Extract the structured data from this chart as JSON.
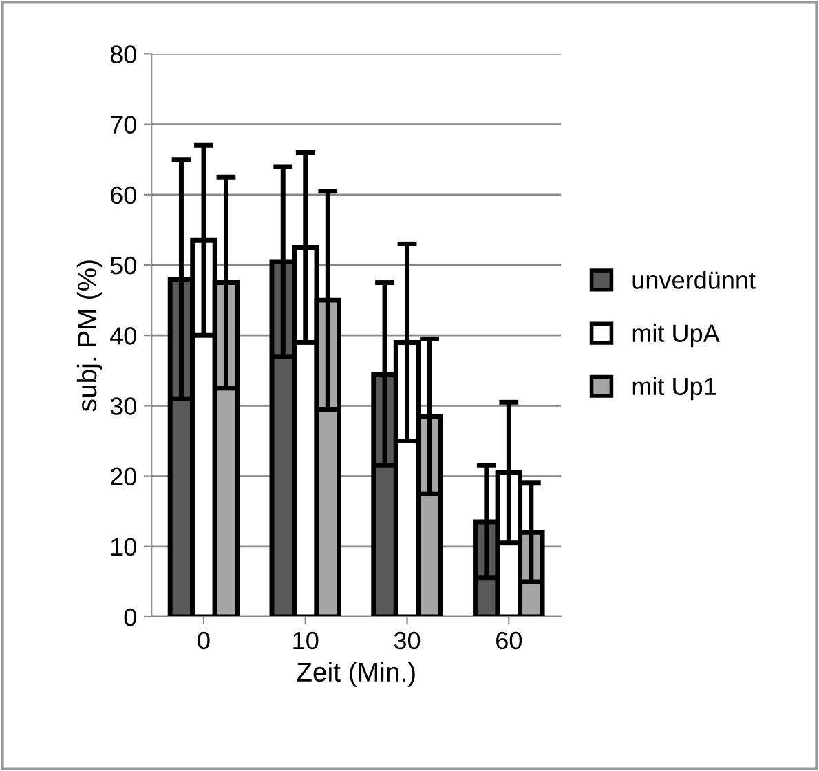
{
  "chart_data": {
    "type": "bar",
    "xlabel": "Zeit (Min.)",
    "ylabel": "subj. PM (%)",
    "categories": [
      "0",
      "10",
      "30",
      "60"
    ],
    "series": [
      {
        "name": "unverdünnt",
        "color": "#595959",
        "values": [
          48,
          50.5,
          34.5,
          13.5
        ],
        "errors": [
          17,
          13.5,
          13,
          8
        ]
      },
      {
        "name": "mit UpA",
        "color": "#ffffff",
        "values": [
          53.5,
          52.5,
          39,
          20.5
        ],
        "errors": [
          13.5,
          13.5,
          14,
          10
        ]
      },
      {
        "name": "mit Up1",
        "color": "#a6a6a6",
        "values": [
          47.5,
          45,
          28.5,
          12
        ],
        "errors": [
          15,
          15.5,
          11,
          7
        ]
      }
    ],
    "ylim": [
      0,
      80
    ],
    "yticks": [
      0,
      10,
      20,
      30,
      40,
      50,
      60,
      70,
      80
    ],
    "grid": "y",
    "legend": "right"
  }
}
